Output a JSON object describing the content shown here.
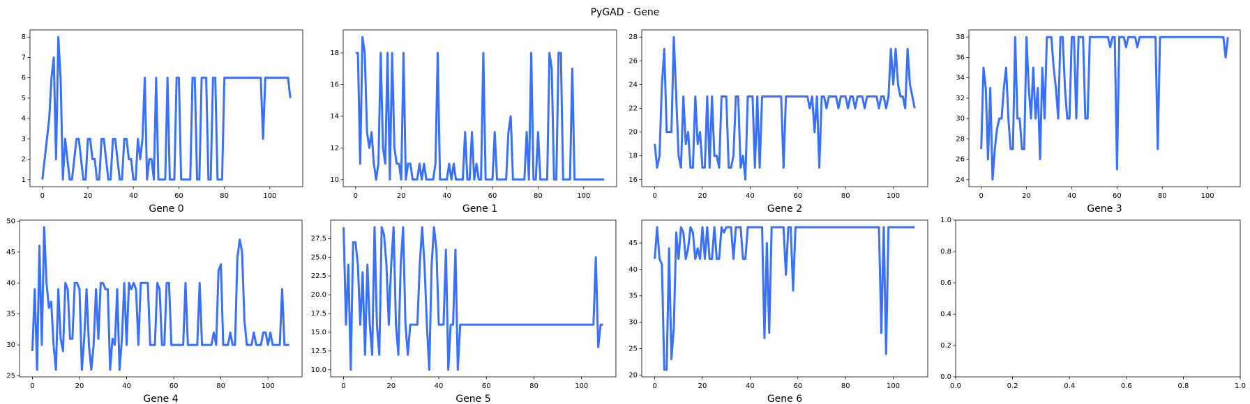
{
  "figure": {
    "title": "PyGAD - Gene",
    "line_color": "#3870FF"
  },
  "chart_data": [
    {
      "type": "line",
      "xlabel": "Gene 0",
      "xlim": [
        -5.45,
        114.45
      ],
      "ylim": [
        0.65,
        8.35
      ],
      "xticks": [
        0,
        20,
        40,
        60,
        80,
        100
      ],
      "yticks": [
        1,
        2,
        3,
        4,
        5,
        6,
        7,
        8
      ],
      "y": [
        1,
        2,
        3,
        4,
        6,
        7,
        2,
        8,
        6,
        1,
        3,
        2,
        1,
        1,
        2,
        3,
        3,
        2,
        1,
        1,
        3,
        3,
        2,
        2,
        1,
        1,
        3,
        3,
        2,
        1,
        1,
        3,
        3,
        2,
        1,
        1,
        3,
        3,
        2,
        2,
        1,
        1,
        3,
        2,
        3,
        6,
        1,
        2,
        2,
        1,
        6,
        1,
        1,
        1,
        1,
        6,
        1,
        1,
        1,
        6,
        6,
        1,
        1,
        1,
        1,
        1,
        6,
        6,
        1,
        1,
        6,
        6,
        6,
        1,
        1,
        6,
        6,
        1,
        1,
        1,
        6,
        6,
        6,
        6,
        6,
        6,
        6,
        6,
        6,
        6,
        6,
        6,
        6,
        6,
        6,
        6,
        6,
        3,
        6,
        6,
        6,
        6,
        6,
        6,
        6,
        6,
        6,
        6,
        6,
        5
      ]
    },
    {
      "type": "line",
      "xlabel": "Gene 1",
      "xlim": [
        -5.45,
        114.45
      ],
      "ylim": [
        9.55,
        19.45
      ],
      "xticks": [
        0,
        20,
        40,
        60,
        80,
        100
      ],
      "yticks": [
        10,
        12,
        14,
        16,
        18
      ],
      "y": [
        18,
        18,
        11,
        19,
        18,
        13,
        12,
        13,
        11,
        10,
        11,
        18,
        12,
        11,
        18,
        10,
        18,
        12,
        11,
        11,
        10,
        18,
        10,
        11,
        11,
        10,
        10,
        10,
        11,
        10,
        11,
        10,
        10,
        10,
        10,
        11,
        18,
        10,
        10,
        10,
        10,
        11,
        10,
        11,
        10,
        10,
        10,
        10,
        13,
        10,
        10,
        13,
        10,
        11,
        10,
        10,
        18,
        10,
        10,
        10,
        10,
        13,
        10,
        10,
        10,
        10,
        10,
        13,
        14,
        10,
        10,
        10,
        10,
        10,
        10,
        13,
        10,
        18,
        10,
        10,
        13,
        10,
        10,
        10,
        10,
        18,
        17,
        10,
        10,
        18,
        18,
        10,
        10,
        10,
        10,
        17,
        10,
        10,
        10,
        10,
        10,
        10,
        10,
        10,
        10,
        10,
        10,
        10,
        10,
        10
      ]
    },
    {
      "type": "line",
      "xlabel": "Gene 2",
      "xlim": [
        -5.45,
        114.45
      ],
      "ylim": [
        15.4,
        28.6
      ],
      "xticks": [
        0,
        20,
        40,
        60,
        80,
        100
      ],
      "yticks": [
        16,
        18,
        20,
        22,
        24,
        26,
        28
      ],
      "y": [
        19,
        17,
        18,
        24,
        27,
        20,
        20,
        20,
        28,
        23,
        18,
        17,
        23,
        19,
        20,
        17,
        17,
        23,
        19,
        20,
        17,
        17,
        23,
        17,
        23,
        18,
        18,
        17,
        23,
        23,
        23,
        17,
        17,
        18,
        23,
        23,
        17,
        18,
        16,
        23,
        23,
        23,
        17,
        23,
        17,
        23,
        23,
        23,
        23,
        23,
        23,
        23,
        23,
        23,
        17,
        23,
        23,
        23,
        23,
        23,
        23,
        23,
        23,
        23,
        23,
        22,
        23,
        20,
        23,
        17,
        23,
        23,
        22,
        23,
        23,
        23,
        23,
        22,
        23,
        23,
        23,
        22,
        23,
        23,
        22,
        23,
        23,
        23,
        22,
        23,
        23,
        23,
        23,
        23,
        22,
        23,
        23,
        22,
        23,
        27,
        24,
        27,
        24,
        23,
        23,
        22,
        27,
        24,
        23,
        22
      ]
    },
    {
      "type": "line",
      "xlabel": "Gene 3",
      "xlim": [
        -5.45,
        114.45
      ],
      "ylim": [
        23.3,
        38.7
      ],
      "xticks": [
        0,
        20,
        40,
        60,
        80,
        100
      ],
      "yticks": [
        24,
        26,
        28,
        30,
        32,
        34,
        36,
        38
      ],
      "y": [
        27,
        35,
        33,
        26,
        33,
        24,
        27,
        29,
        30,
        30,
        33,
        35,
        30,
        27,
        27,
        38,
        30,
        30,
        27,
        27,
        38,
        33,
        30,
        35,
        30,
        33,
        26,
        35,
        30,
        38,
        38,
        38,
        35,
        33,
        30,
        38,
        38,
        33,
        30,
        30,
        38,
        38,
        30,
        38,
        38,
        38,
        30,
        30,
        38,
        38,
        38,
        38,
        38,
        38,
        38,
        38,
        38,
        37,
        38,
        38,
        25,
        38,
        38,
        38,
        37,
        38,
        38,
        38,
        38,
        37,
        38,
        38,
        38,
        38,
        38,
        38,
        38,
        38,
        27,
        38,
        38,
        38,
        38,
        38,
        38,
        38,
        38,
        38,
        38,
        38,
        38,
        38,
        38,
        38,
        38,
        38,
        38,
        38,
        38,
        38,
        38,
        38,
        38,
        38,
        38,
        38,
        38,
        38,
        36,
        38
      ]
    },
    {
      "type": "line",
      "xlabel": "Gene 4",
      "xlim": [
        -5.45,
        114.45
      ],
      "ylim": [
        24.85,
        50.15
      ],
      "xticks": [
        0,
        20,
        40,
        60,
        80,
        100
      ],
      "yticks": [
        25,
        30,
        35,
        40,
        45,
        50
      ],
      "y": [
        29,
        39,
        26,
        46,
        30,
        49,
        40,
        36,
        37,
        30,
        26,
        39,
        31,
        29,
        40,
        39,
        31,
        31,
        40,
        40,
        39,
        26,
        31,
        39,
        30,
        26,
        30,
        39,
        31,
        40,
        40,
        39,
        39,
        26,
        31,
        30,
        39,
        26,
        31,
        40,
        30,
        40,
        39,
        40,
        39,
        30,
        40,
        40,
        40,
        40,
        30,
        30,
        30,
        40,
        39,
        30,
        30,
        40,
        40,
        30,
        30,
        30,
        30,
        30,
        30,
        40,
        30,
        30,
        30,
        30,
        30,
        40,
        30,
        30,
        30,
        30,
        30,
        32,
        30,
        42,
        43,
        30,
        30,
        30,
        32,
        30,
        30,
        44,
        47,
        45,
        34,
        30,
        30,
        30,
        32,
        30,
        30,
        30,
        32,
        32,
        30,
        32,
        30,
        30,
        30,
        30,
        39,
        30,
        30,
        30
      ]
    },
    {
      "type": "line",
      "xlabel": "Gene 5",
      "xlim": [
        -5.45,
        114.45
      ],
      "ylim": [
        9.05,
        29.95
      ],
      "xticks": [
        0,
        20,
        40,
        60,
        80,
        100
      ],
      "yticks": [
        10.0,
        12.5,
        15.0,
        17.5,
        20.0,
        22.5,
        25.0,
        27.5
      ],
      "y": [
        29,
        16,
        24,
        10,
        27,
        27,
        24,
        16,
        23,
        12,
        24,
        16,
        12,
        29,
        16,
        12,
        29,
        28,
        24,
        16,
        24,
        29,
        16,
        12,
        24,
        29,
        16,
        12,
        16,
        16,
        16,
        16,
        24,
        29,
        24,
        16,
        10,
        24,
        29,
        26,
        16,
        16,
        16,
        26,
        10,
        16,
        16,
        26,
        10,
        16,
        16,
        16,
        16,
        16,
        16,
        16,
        16,
        16,
        16,
        16,
        16,
        16,
        16,
        16,
        16,
        16,
        16,
        16,
        16,
        16,
        16,
        16,
        16,
        16,
        16,
        16,
        16,
        16,
        16,
        16,
        16,
        16,
        16,
        16,
        16,
        16,
        16,
        16,
        16,
        16,
        16,
        16,
        16,
        16,
        16,
        16,
        16,
        16,
        16,
        16,
        16,
        16,
        16,
        16,
        16,
        16,
        25,
        13,
        16,
        16
      ]
    },
    {
      "type": "line",
      "xlabel": "Gene 6",
      "xlim": [
        -5.45,
        114.45
      ],
      "ylim": [
        19.65,
        49.35
      ],
      "xticks": [
        0,
        20,
        40,
        60,
        80,
        100
      ],
      "yticks": [
        20,
        25,
        30,
        35,
        40,
        45
      ],
      "y": [
        42,
        48,
        42,
        41,
        21,
        21,
        44,
        23,
        29,
        47,
        42,
        48,
        47,
        42,
        44,
        48,
        47,
        42,
        44,
        42,
        48,
        42,
        48,
        42,
        42,
        48,
        42,
        42,
        48,
        47,
        48,
        48,
        48,
        42,
        48,
        48,
        48,
        42,
        42,
        48,
        48,
        48,
        48,
        48,
        48,
        48,
        27,
        45,
        28,
        48,
        48,
        48,
        48,
        48,
        48,
        39,
        48,
        48,
        36,
        48,
        48,
        48,
        48,
        48,
        48,
        48,
        48,
        48,
        48,
        48,
        48,
        48,
        48,
        48,
        48,
        48,
        48,
        48,
        48,
        48,
        48,
        48,
        48,
        48,
        48,
        48,
        48,
        48,
        48,
        48,
        48,
        48,
        48,
        48,
        48,
        28,
        48,
        24,
        48,
        48,
        48,
        48,
        48,
        48,
        48,
        48,
        48,
        48,
        48,
        48
      ]
    },
    {
      "type": "line",
      "xlabel": "",
      "xlim": [
        0,
        1
      ],
      "ylim": [
        0,
        1
      ],
      "xticks": [
        0.0,
        0.2,
        0.4,
        0.6,
        0.8,
        1.0
      ],
      "yticks": [
        0.0,
        0.2,
        0.4,
        0.6,
        0.8,
        1.0
      ],
      "y": []
    }
  ]
}
